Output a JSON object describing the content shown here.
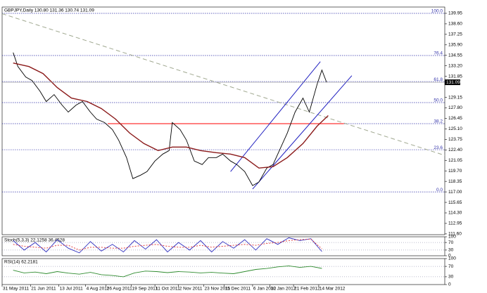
{
  "chart_data": [
    {
      "type": "line",
      "title": "GBPJPY,Daily  130.80 131.36 130.74 131.09",
      "xlim": [
        -7,
        274
      ],
      "ylim": [
        111.5,
        140.76
      ],
      "xticks": [
        {
          "value": -7,
          "label": "31 May 2011"
        },
        {
          "value": 11,
          "label": "21 Jun 2011"
        },
        {
          "value": 29,
          "label": "13 Jul 2011"
        },
        {
          "value": 46,
          "label": "4 Aug 2011"
        },
        {
          "value": 59,
          "label": "26 Aug 2011"
        },
        {
          "value": 75,
          "label": "19 Sep 2011"
        },
        {
          "value": 90,
          "label": "11 Oct 2011"
        },
        {
          "value": 105,
          "label": "2 Nov 2011"
        },
        {
          "value": 121,
          "label": "23 Nov 2011"
        },
        {
          "value": 134,
          "label": "15 Dec 2011"
        },
        {
          "value": 152,
          "label": "6 Jan 2012"
        },
        {
          "value": 163,
          "label": "30 Jan 2012"
        },
        {
          "value": 178,
          "label": "21 Feb 2012"
        },
        {
          "value": 194,
          "label": "14 Mar 2012"
        }
      ],
      "yticks": [
        {
          "value": 139.95,
          "label": "139.95"
        },
        {
          "value": 138.6,
          "label": "138.60"
        },
        {
          "value": 137.25,
          "label": "137.25"
        },
        {
          "value": 135.9,
          "label": "135.90"
        },
        {
          "value": 134.55,
          "label": "134.55"
        },
        {
          "value": 133.2,
          "label": "133.20"
        },
        {
          "value": 131.85,
          "label": "131.85"
        },
        {
          "value": 129.15,
          "label": "129.15"
        },
        {
          "value": 127.8,
          "label": "127.80"
        },
        {
          "value": 126.45,
          "label": "126.45"
        },
        {
          "value": 125.1,
          "label": "125.10"
        },
        {
          "value": 123.75,
          "label": "123.75"
        },
        {
          "value": 122.4,
          "label": "122.40"
        },
        {
          "value": 121.05,
          "label": "121.05"
        },
        {
          "value": 119.7,
          "label": "119.70"
        },
        {
          "value": 118.35,
          "label": "118.35"
        },
        {
          "value": 117.0,
          "label": "117.00"
        },
        {
          "value": 115.65,
          "label": "115.65"
        },
        {
          "value": 114.3,
          "label": "114.30"
        },
        {
          "value": 112.95,
          "label": "112.95"
        },
        {
          "value": 111.6,
          "label": "111.60"
        }
      ],
      "last": 131.09,
      "fib_levels": [
        {
          "value": 139.95,
          "label": "100.0"
        },
        {
          "value": 134.53,
          "label": "76.4"
        },
        {
          "value": 131.18,
          "label": "61.8"
        },
        {
          "value": 128.48,
          "label": "50.0"
        },
        {
          "value": 125.77,
          "label": "38.2"
        },
        {
          "value": 122.42,
          "label": "23.6"
        },
        {
          "value": 117.0,
          "label": "0.0"
        }
      ],
      "lines": [
        {
          "color": "#a0a890",
          "style": "dashed",
          "x": [
            -7,
            274
          ],
          "values": [
            139.9,
            121.7
          ]
        },
        {
          "color": "#ff0000",
          "style": "solid",
          "x": [
            60,
            210
          ],
          "values": [
            125.77,
            125.77
          ]
        },
        {
          "color": "#2020c0",
          "style": "solid",
          "x": [
            138,
            195
          ],
          "values": [
            119.61,
            133.74
          ]
        },
        {
          "color": "#2020c0",
          "style": "solid",
          "x": [
            152,
            215
          ],
          "values": [
            117.36,
            131.94
          ]
        }
      ],
      "series": [
        {
          "color": "#000000",
          "x": [
            0,
            3,
            8,
            12,
            17,
            21,
            26,
            31,
            35,
            40,
            44,
            49,
            53,
            58,
            63,
            67,
            72,
            76,
            81,
            85,
            90,
            95,
            99,
            101,
            106,
            110,
            115,
            120,
            124,
            129,
            133,
            138,
            142,
            147,
            152,
            156,
            161,
            165,
            170,
            174,
            179,
            184,
            188,
            193,
            196,
            199
          ],
          "values": [
            134.91,
            133.11,
            131.76,
            131.31,
            129.96,
            128.61,
            129.51,
            128.16,
            127.26,
            128.16,
            128.61,
            127.26,
            126.36,
            125.91,
            125.01,
            123.66,
            121.41,
            118.71,
            119.16,
            119.61,
            120.96,
            121.86,
            122.31,
            125.91,
            125.01,
            123.66,
            120.96,
            120.51,
            121.41,
            121.41,
            121.86,
            120.96,
            120.51,
            119.61,
            117.81,
            118.26,
            120.06,
            120.51,
            122.76,
            124.56,
            127.26,
            129.06,
            127.26,
            130.86,
            132.66,
            131.09
          ]
        },
        {
          "color": "#8b1a1a",
          "x": [
            0,
            10,
            19,
            28,
            37,
            47,
            56,
            65,
            74,
            83,
            92,
            101,
            110,
            119,
            129,
            138,
            147,
            156,
            165,
            174,
            184,
            193,
            200
          ],
          "values": [
            133.56,
            133.11,
            132.21,
            130.41,
            129.06,
            128.61,
            127.71,
            126.36,
            124.56,
            123.21,
            122.31,
            122.76,
            122.76,
            122.31,
            122.04,
            121.86,
            121.41,
            120.06,
            120.24,
            121.41,
            123.21,
            125.46,
            126.81
          ]
        }
      ]
    },
    {
      "type": "line",
      "title": "Stoch(5,3,3) 22.1258 36.4528",
      "xlim": [
        -7,
        274
      ],
      "ylim": [
        0,
        100
      ],
      "yticks": [
        0,
        30,
        70,
        100
      ],
      "x": [
        0,
        7,
        14,
        21,
        28,
        35,
        42,
        49,
        56,
        63,
        70,
        77,
        84,
        91,
        98,
        105,
        112,
        119,
        126,
        133,
        140,
        147,
        154,
        161,
        168,
        175,
        182,
        189,
        196
      ],
      "series": [
        {
          "color": "#3030c0",
          "style": "solid",
          "values": [
            80,
            30,
            70,
            20,
            85,
            40,
            15,
            75,
            25,
            60,
            20,
            80,
            35,
            85,
            20,
            70,
            30,
            80,
            20,
            75,
            40,
            85,
            30,
            90,
            60,
            95,
            80,
            90,
            22.1258
          ]
        },
        {
          "color": "#e03030",
          "style": "dotted",
          "values": [
            60,
            50,
            45,
            40,
            55,
            55,
            30,
            45,
            45,
            40,
            40,
            50,
            55,
            60,
            50,
            45,
            45,
            55,
            45,
            50,
            55,
            60,
            55,
            65,
            70,
            80,
            85,
            88,
            36.4528
          ]
        }
      ]
    },
    {
      "type": "line",
      "title": "RSI(14) 62.2181",
      "xlim": [
        -7,
        274
      ],
      "ylim": [
        0,
        100
      ],
      "yticks": [
        0,
        30,
        70,
        100
      ],
      "x": [
        0,
        7,
        14,
        21,
        28,
        35,
        42,
        49,
        56,
        63,
        70,
        77,
        84,
        91,
        98,
        105,
        112,
        119,
        126,
        133,
        140,
        147,
        154,
        161,
        168,
        175,
        182,
        189,
        196
      ],
      "series": [
        {
          "color": "#2e8b2e",
          "style": "solid",
          "values": [
            55,
            45,
            48,
            42,
            50,
            44,
            40,
            47,
            38,
            35,
            30,
            45,
            52,
            50,
            46,
            50,
            48,
            45,
            47,
            44,
            42,
            50,
            58,
            62,
            68,
            72,
            66,
            70,
            62.2181
          ]
        }
      ]
    }
  ]
}
